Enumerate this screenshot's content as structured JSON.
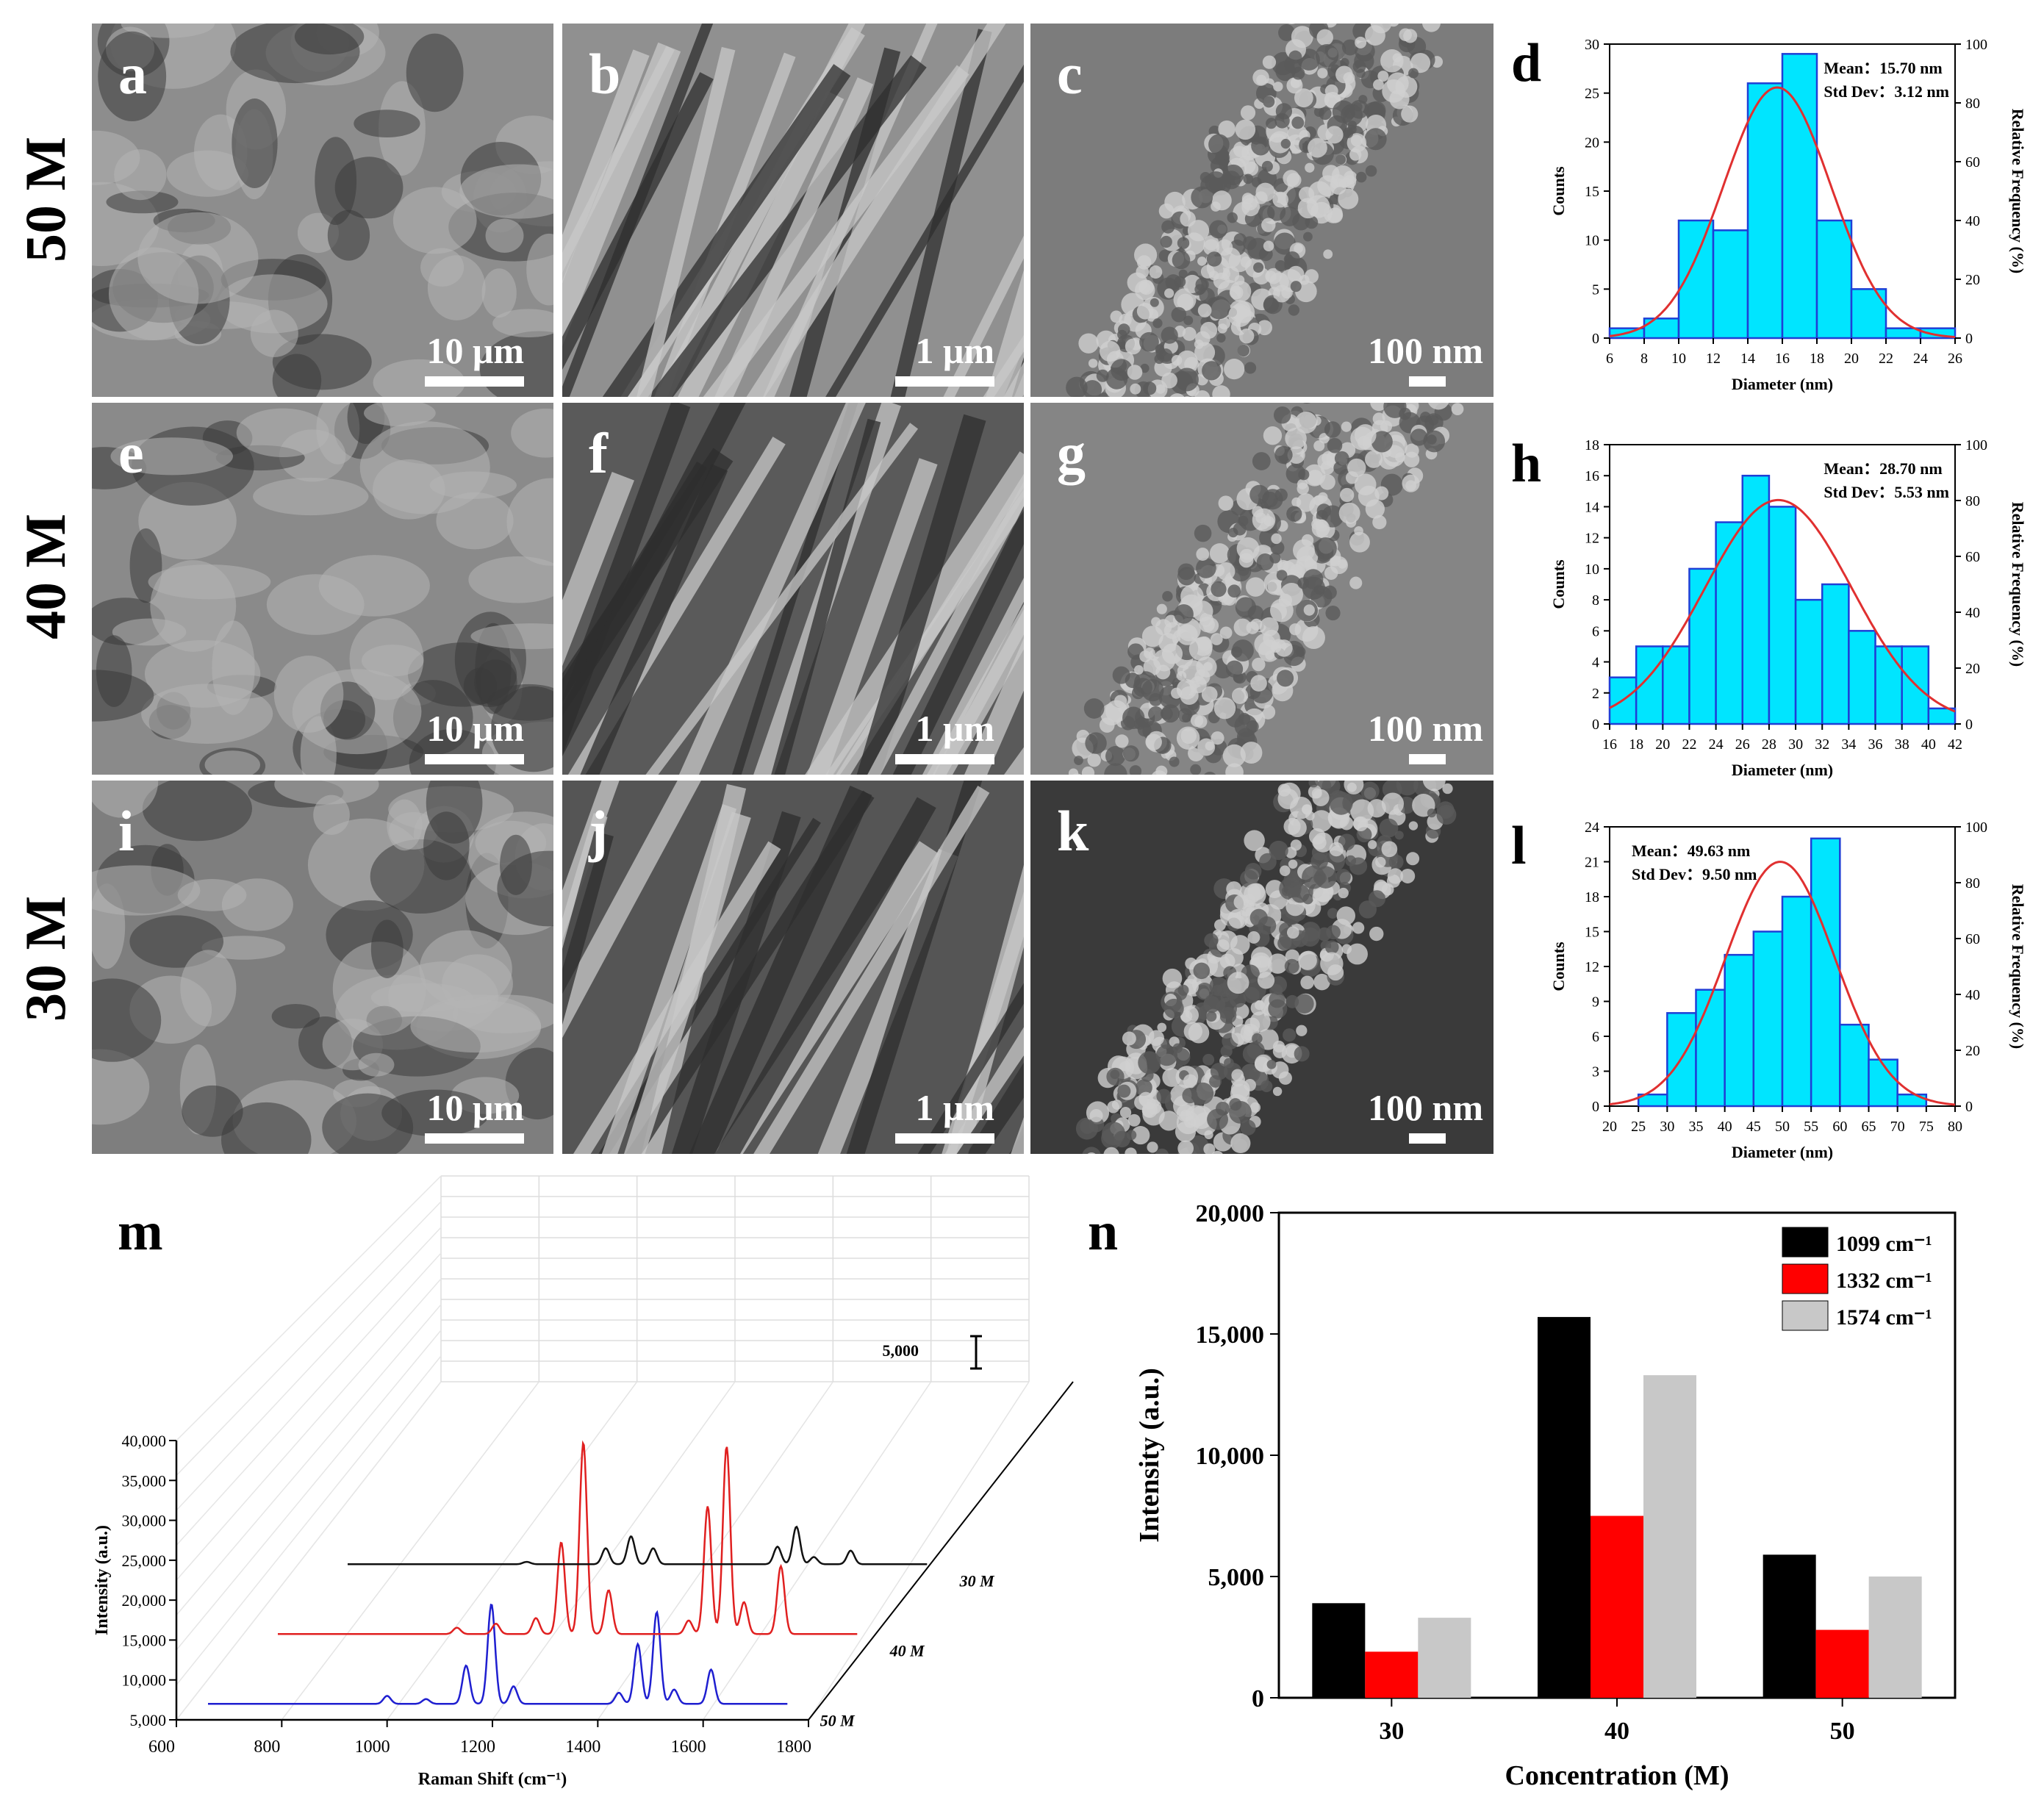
{
  "row_labels": [
    "50 M",
    "40 M",
    "30 M"
  ],
  "sem_panels": [
    {
      "letter": "a",
      "scale": "10 μm",
      "tone": "#8d8d8d"
    },
    {
      "letter": "b",
      "scale": "1 μm",
      "tone": "#909090"
    },
    {
      "letter": "c",
      "scale": "100 nm",
      "tone": "#7c7c7c"
    },
    {
      "letter": "e",
      "scale": "10 μm",
      "tone": "#8a8a8a"
    },
    {
      "letter": "f",
      "scale": "1 μm",
      "tone": "#5a5a5a"
    },
    {
      "letter": "g",
      "scale": "100 nm",
      "tone": "#858585"
    },
    {
      "letter": "i",
      "scale": "10 μm",
      "tone": "#7e7e7e"
    },
    {
      "letter": "j",
      "scale": "1 μm",
      "tone": "#555555"
    },
    {
      "letter": "k",
      "scale": "100 nm",
      "tone": "#3a3a3a"
    }
  ],
  "chart_data": [
    {
      "id": "d",
      "type": "bar",
      "letter": "d",
      "xlabel": "Diameter (nm)",
      "ylabel": "Counts",
      "y2label": "Relative Frequency (%)",
      "xlim": [
        6,
        26
      ],
      "ylim": [
        0,
        30
      ],
      "y2lim": [
        0,
        100
      ],
      "xticks": [
        "6",
        "8",
        "10",
        "12",
        "14",
        "16",
        "18",
        "20",
        "22",
        "24",
        "26"
      ],
      "yticks": [
        "0",
        "5",
        "10",
        "15",
        "20",
        "25",
        "30"
      ],
      "y2ticks": [
        "0",
        "20",
        "40",
        "60",
        "80",
        "100"
      ],
      "bin_start": 6,
      "bin_width": 2,
      "values": [
        1,
        2,
        12,
        11,
        26,
        29,
        12,
        5,
        1,
        1
      ],
      "fit_mean": 15.7,
      "fit_sd": 3.12,
      "stats": [
        "Mean：15.70 nm",
        "Std Dev：3.12 nm"
      ],
      "bar_color": "#00e5ff",
      "edge_color": "#1f3fd6",
      "fit_color": "#e03030"
    },
    {
      "id": "h",
      "type": "bar",
      "letter": "h",
      "xlabel": "Diameter (nm)",
      "ylabel": "Counts",
      "y2label": "Relative Frequency (%)",
      "xlim": [
        16,
        42
      ],
      "ylim": [
        0,
        18
      ],
      "y2lim": [
        0,
        100
      ],
      "xticks": [
        "16",
        "18",
        "20",
        "22",
        "24",
        "26",
        "28",
        "30",
        "32",
        "34",
        "36",
        "38",
        "40",
        "42"
      ],
      "yticks": [
        "0",
        "2",
        "4",
        "6",
        "8",
        "10",
        "12",
        "14",
        "16",
        "18"
      ],
      "y2ticks": [
        "0",
        "20",
        "40",
        "60",
        "80",
        "100"
      ],
      "bin_start": 16,
      "bin_width": 2,
      "values": [
        3,
        5,
        5,
        10,
        13,
        16,
        14,
        8,
        9,
        6,
        5,
        5,
        1
      ],
      "fit_mean": 28.7,
      "fit_sd": 5.53,
      "stats": [
        "Mean：28.70 nm",
        "Std Dev：5.53 nm"
      ],
      "bar_color": "#00e5ff",
      "edge_color": "#1f3fd6",
      "fit_color": "#e03030"
    },
    {
      "id": "l",
      "type": "bar",
      "letter": "l",
      "xlabel": "Diameter (nm)",
      "ylabel": "Counts",
      "y2label": "Relative Frequency (%)",
      "xlim": [
        20,
        80
      ],
      "ylim": [
        0,
        24
      ],
      "y2lim": [
        0,
        100
      ],
      "xticks": [
        "20",
        "25",
        "30",
        "35",
        "40",
        "45",
        "50",
        "55",
        "60",
        "65",
        "70",
        "75",
        "80"
      ],
      "yticks": [
        "0",
        "3",
        "6",
        "9",
        "12",
        "15",
        "18",
        "21",
        "24"
      ],
      "y2ticks": [
        "0",
        "20",
        "40",
        "60",
        "80",
        "100"
      ],
      "bin_start": 25,
      "bin_width": 5,
      "values": [
        1,
        8,
        10,
        13,
        15,
        18,
        23,
        7,
        4,
        1
      ],
      "fit_mean": 49.63,
      "fit_sd": 9.5,
      "stats": [
        "Mean：49.63 nm",
        "Std Dev：9.50 nm"
      ],
      "bar_color": "#00e5ff",
      "edge_color": "#1f3fd6",
      "fit_color": "#e03030"
    },
    {
      "id": "m",
      "type": "line",
      "letter": "m",
      "xlabel": "Raman Shift (cm⁻¹)",
      "ylabel": "Intensity (a.u.)",
      "xlim": [
        600,
        1800
      ],
      "ylim": [
        5000,
        40000
      ],
      "xticks": [
        "600",
        "800",
        "1000",
        "1200",
        "1400",
        "1600",
        "1800"
      ],
      "yticks": [
        "5,000",
        "10,000",
        "15,000",
        "20,000",
        "25,000",
        "30,000",
        "35,000",
        "40,000"
      ],
      "scale_label": "5,000",
      "series": [
        {
          "name": "50 M",
          "color": "#1f1fd0",
          "baseline": 7000,
          "peaks": [
            [
              1000,
              1000
            ],
            [
              1074,
              600
            ],
            [
              1150,
              4800
            ],
            [
              1198,
              12500
            ],
            [
              1240,
              2200
            ],
            [
              1440,
              1400
            ],
            [
              1476,
              7500
            ],
            [
              1512,
              11500
            ],
            [
              1545,
              1800
            ],
            [
              1615,
              4300
            ]
          ]
        },
        {
          "name": "40 M",
          "color": "#e02020",
          "baseline": 7000,
          "peaks": [
            [
              1000,
              800
            ],
            [
              1074,
              1300
            ],
            [
              1150,
              2000
            ],
            [
              1198,
              11500
            ],
            [
              1240,
              24000
            ],
            [
              1288,
              5500
            ],
            [
              1440,
              1700
            ],
            [
              1476,
              16000
            ],
            [
              1512,
              23500
            ],
            [
              1545,
              4000
            ],
            [
              1615,
              8500
            ]
          ]
        },
        {
          "name": "30 M",
          "color": "#111111",
          "baseline": 7000,
          "peaks": [
            [
              1000,
              300
            ],
            [
              1150,
              2000
            ],
            [
              1198,
              3500
            ],
            [
              1240,
              2000
            ],
            [
              1476,
              2200
            ],
            [
              1512,
              4700
            ],
            [
              1545,
              900
            ],
            [
              1615,
              1700
            ]
          ]
        }
      ]
    },
    {
      "id": "n",
      "type": "bar",
      "letter": "n",
      "xlabel": "Concentration (M)",
      "ylabel": "Intensity (a.u.)",
      "ylim": [
        0,
        20000
      ],
      "yticks": [
        "0",
        "5,000",
        "10,000",
        "15,000",
        "20,000"
      ],
      "categories": [
        "30",
        "40",
        "50"
      ],
      "series": [
        {
          "name": "1099 cm⁻¹",
          "color": "#000000",
          "values": [
            3900,
            15700,
            5900
          ]
        },
        {
          "name": "1332 cm⁻¹",
          "color": "#ff0000",
          "values": [
            1900,
            7500,
            2800
          ]
        },
        {
          "name": "1574 cm⁻¹",
          "color": "#c8c8c8",
          "values": [
            3300,
            13300,
            5000
          ]
        }
      ]
    }
  ]
}
